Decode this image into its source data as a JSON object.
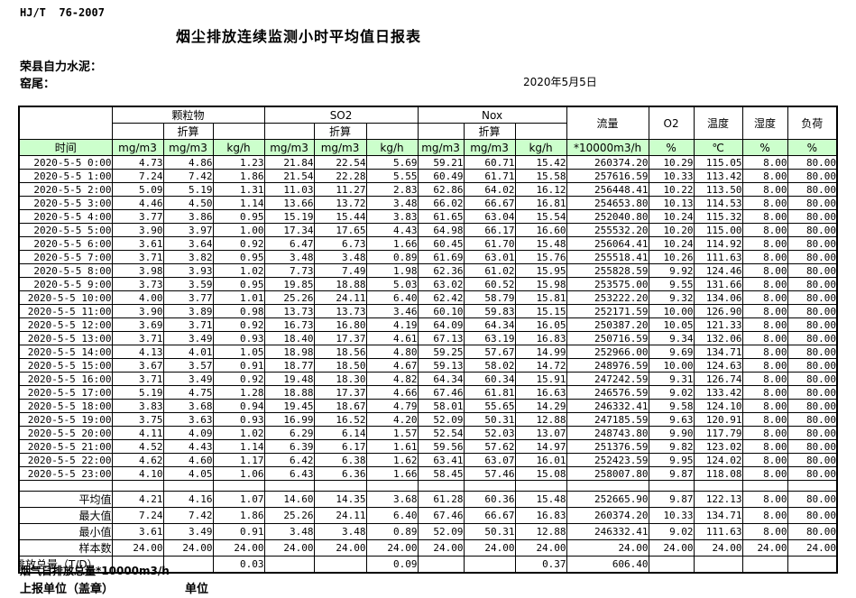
{
  "page": {
    "doc_code": "HJ/T  76-2007",
    "title": "烟尘排放连续监测小时平均值日报表",
    "company": "荣县自力水泥：",
    "station": "窑尾：",
    "date": "2020年5月5日"
  },
  "colors": {
    "header_green": "#ccffcc"
  },
  "table": {
    "time_header": "时间",
    "converted_label": "折算",
    "groups": [
      "颗粒物",
      "SO2",
      "Nox"
    ],
    "flow_header": "流量",
    "o2_header": "O2",
    "temp_header": "温度",
    "humidity_header": "湿度",
    "load_header": "负荷",
    "units": [
      "mg/m3",
      "mg/m3",
      "kg/h",
      "mg/m3",
      "mg/m3",
      "kg/h",
      "mg/m3",
      "mg/m3",
      "kg/h",
      "*10000m3/h",
      "%",
      "℃",
      "%",
      "%"
    ],
    "rows": [
      {
        "time": "2020-5-5 0:00",
        "values": [
          "4.73",
          "4.86",
          "1.23",
          "21.84",
          "22.54",
          "5.69",
          "59.21",
          "60.71",
          "15.42",
          "260374.20",
          "10.29",
          "115.05",
          "8.00",
          "80.00"
        ]
      },
      {
        "time": "2020-5-5 1:00",
        "values": [
          "7.24",
          "7.42",
          "1.86",
          "21.54",
          "22.28",
          "5.55",
          "60.49",
          "61.71",
          "15.58",
          "257616.59",
          "10.33",
          "113.42",
          "8.00",
          "80.00"
        ]
      },
      {
        "time": "2020-5-5 2:00",
        "values": [
          "5.09",
          "5.19",
          "1.31",
          "11.03",
          "11.27",
          "2.83",
          "62.86",
          "64.02",
          "16.12",
          "256448.41",
          "10.22",
          "113.50",
          "8.00",
          "80.00"
        ]
      },
      {
        "time": "2020-5-5 3:00",
        "values": [
          "4.46",
          "4.50",
          "1.14",
          "13.66",
          "13.72",
          "3.48",
          "66.02",
          "66.67",
          "16.81",
          "254653.80",
          "10.13",
          "114.53",
          "8.00",
          "80.00"
        ]
      },
      {
        "time": "2020-5-5 4:00",
        "values": [
          "3.77",
          "3.86",
          "0.95",
          "15.19",
          "15.44",
          "3.83",
          "61.65",
          "63.04",
          "15.54",
          "252040.80",
          "10.24",
          "115.32",
          "8.00",
          "80.00"
        ]
      },
      {
        "time": "2020-5-5 5:00",
        "values": [
          "3.90",
          "3.97",
          "1.00",
          "17.34",
          "17.65",
          "4.43",
          "64.98",
          "66.17",
          "16.60",
          "255532.20",
          "10.20",
          "115.00",
          "8.00",
          "80.00"
        ]
      },
      {
        "time": "2020-5-5 6:00",
        "values": [
          "3.61",
          "3.64",
          "0.92",
          "6.47",
          "6.73",
          "1.66",
          "60.45",
          "61.70",
          "15.48",
          "256064.41",
          "10.24",
          "114.92",
          "8.00",
          "80.00"
        ]
      },
      {
        "time": "2020-5-5 7:00",
        "values": [
          "3.71",
          "3.82",
          "0.95",
          "3.48",
          "3.48",
          "0.89",
          "61.69",
          "63.01",
          "15.76",
          "255518.41",
          "10.26",
          "111.63",
          "8.00",
          "80.00"
        ]
      },
      {
        "time": "2020-5-5 8:00",
        "values": [
          "3.98",
          "3.93",
          "1.02",
          "7.73",
          "7.49",
          "1.98",
          "62.36",
          "61.02",
          "15.95",
          "255828.59",
          "9.92",
          "124.46",
          "8.00",
          "80.00"
        ]
      },
      {
        "time": "2020-5-5 9:00",
        "values": [
          "3.73",
          "3.59",
          "0.95",
          "19.85",
          "18.88",
          "5.03",
          "63.02",
          "60.52",
          "15.98",
          "253575.00",
          "9.55",
          "131.66",
          "8.00",
          "80.00"
        ]
      },
      {
        "time": "2020-5-5 10:00",
        "values": [
          "4.00",
          "3.77",
          "1.01",
          "25.26",
          "24.11",
          "6.40",
          "62.42",
          "58.79",
          "15.81",
          "253222.20",
          "9.32",
          "134.06",
          "8.00",
          "80.00"
        ]
      },
      {
        "time": "2020-5-5 11:00",
        "values": [
          "3.90",
          "3.89",
          "0.98",
          "13.73",
          "13.73",
          "3.46",
          "60.10",
          "59.83",
          "15.15",
          "252171.59",
          "10.00",
          "126.90",
          "8.00",
          "80.00"
        ]
      },
      {
        "time": "2020-5-5 12:00",
        "values": [
          "3.69",
          "3.71",
          "0.92",
          "16.73",
          "16.80",
          "4.19",
          "64.09",
          "64.34",
          "16.05",
          "250387.20",
          "10.05",
          "121.33",
          "8.00",
          "80.00"
        ]
      },
      {
        "time": "2020-5-5 13:00",
        "values": [
          "3.71",
          "3.49",
          "0.93",
          "18.40",
          "17.37",
          "4.61",
          "67.13",
          "63.19",
          "16.83",
          "250716.59",
          "9.34",
          "132.06",
          "8.00",
          "80.00"
        ]
      },
      {
        "time": "2020-5-5 14:00",
        "values": [
          "4.13",
          "4.01",
          "1.05",
          "18.98",
          "18.56",
          "4.80",
          "59.25",
          "57.67",
          "14.99",
          "252966.00",
          "9.69",
          "134.71",
          "8.00",
          "80.00"
        ]
      },
      {
        "time": "2020-5-5 15:00",
        "values": [
          "3.67",
          "3.57",
          "0.91",
          "18.77",
          "18.50",
          "4.67",
          "59.13",
          "58.02",
          "14.72",
          "248976.59",
          "10.00",
          "124.63",
          "8.00",
          "80.00"
        ]
      },
      {
        "time": "2020-5-5 16:00",
        "values": [
          "3.71",
          "3.49",
          "0.92",
          "19.48",
          "18.30",
          "4.82",
          "64.34",
          "60.34",
          "15.91",
          "247242.59",
          "9.31",
          "126.74",
          "8.00",
          "80.00"
        ]
      },
      {
        "time": "2020-5-5 17:00",
        "values": [
          "5.19",
          "4.75",
          "1.28",
          "18.88",
          "17.37",
          "4.66",
          "67.46",
          "61.81",
          "16.63",
          "246576.59",
          "9.02",
          "133.42",
          "8.00",
          "80.00"
        ]
      },
      {
        "time": "2020-5-5 18:00",
        "values": [
          "3.83",
          "3.68",
          "0.94",
          "19.45",
          "18.67",
          "4.79",
          "58.01",
          "55.65",
          "14.29",
          "246332.41",
          "9.58",
          "124.10",
          "8.00",
          "80.00"
        ]
      },
      {
        "time": "2020-5-5 19:00",
        "values": [
          "3.75",
          "3.63",
          "0.93",
          "16.99",
          "16.52",
          "4.20",
          "52.09",
          "50.31",
          "12.88",
          "247185.59",
          "9.63",
          "120.91",
          "8.00",
          "80.00"
        ]
      },
      {
        "time": "2020-5-5 20:00",
        "values": [
          "4.11",
          "4.09",
          "1.02",
          "6.29",
          "6.14",
          "1.57",
          "52.54",
          "52.03",
          "13.07",
          "248743.80",
          "9.90",
          "117.79",
          "8.00",
          "80.00"
        ]
      },
      {
        "time": "2020-5-5 21:00",
        "values": [
          "4.52",
          "4.43",
          "1.14",
          "6.39",
          "6.17",
          "1.61",
          "59.56",
          "57.62",
          "14.97",
          "251376.59",
          "9.82",
          "123.02",
          "8.00",
          "80.00"
        ]
      },
      {
        "time": "2020-5-5 22:00",
        "values": [
          "4.62",
          "4.60",
          "1.17",
          "6.42",
          "6.38",
          "1.62",
          "63.41",
          "63.07",
          "16.01",
          "252423.59",
          "9.95",
          "124.02",
          "8.00",
          "80.00"
        ]
      },
      {
        "time": "2020-5-5 23:00",
        "values": [
          "4.10",
          "4.05",
          "1.06",
          "6.43",
          "6.36",
          "1.66",
          "58.45",
          "57.46",
          "15.08",
          "258007.80",
          "9.87",
          "118.08",
          "8.00",
          "80.00"
        ]
      }
    ],
    "summary_rows": [
      {
        "label": "平均值",
        "values": [
          "4.21",
          "4.16",
          "1.07",
          "14.60",
          "14.35",
          "3.68",
          "61.28",
          "60.36",
          "15.48",
          "252665.90",
          "9.87",
          "122.13",
          "8.00",
          "80.00"
        ]
      },
      {
        "label": "最大值",
        "values": [
          "7.24",
          "7.42",
          "1.86",
          "25.26",
          "24.11",
          "6.40",
          "67.46",
          "66.67",
          "16.83",
          "260374.20",
          "10.33",
          "134.71",
          "8.00",
          "80.00"
        ]
      },
      {
        "label": "最小值",
        "values": [
          "3.61",
          "3.49",
          "0.91",
          "3.48",
          "3.48",
          "0.89",
          "52.09",
          "50.31",
          "12.88",
          "246332.41",
          "9.02",
          "111.63",
          "8.00",
          "80.00"
        ]
      },
      {
        "label": "样本数",
        "values": [
          "24.00",
          "24.00",
          "24.00",
          "24.00",
          "24.00",
          "24.00",
          "24.00",
          "24.00",
          "24.00",
          "24.00",
          "24.00",
          "24.00",
          "24.00",
          "24.00"
        ]
      },
      {
        "label": "日排放总量（T/D）",
        "values": [
          "",
          "",
          "0.03",
          "",
          "",
          "0.09",
          "",
          "",
          "0.37",
          "606.40",
          "",
          "",
          "",
          ""
        ]
      }
    ]
  },
  "footer": {
    "flue_total": "烟气日排放总量*10000m3/h",
    "report_unit": "上报单位（盖章）",
    "unit": "单位"
  }
}
